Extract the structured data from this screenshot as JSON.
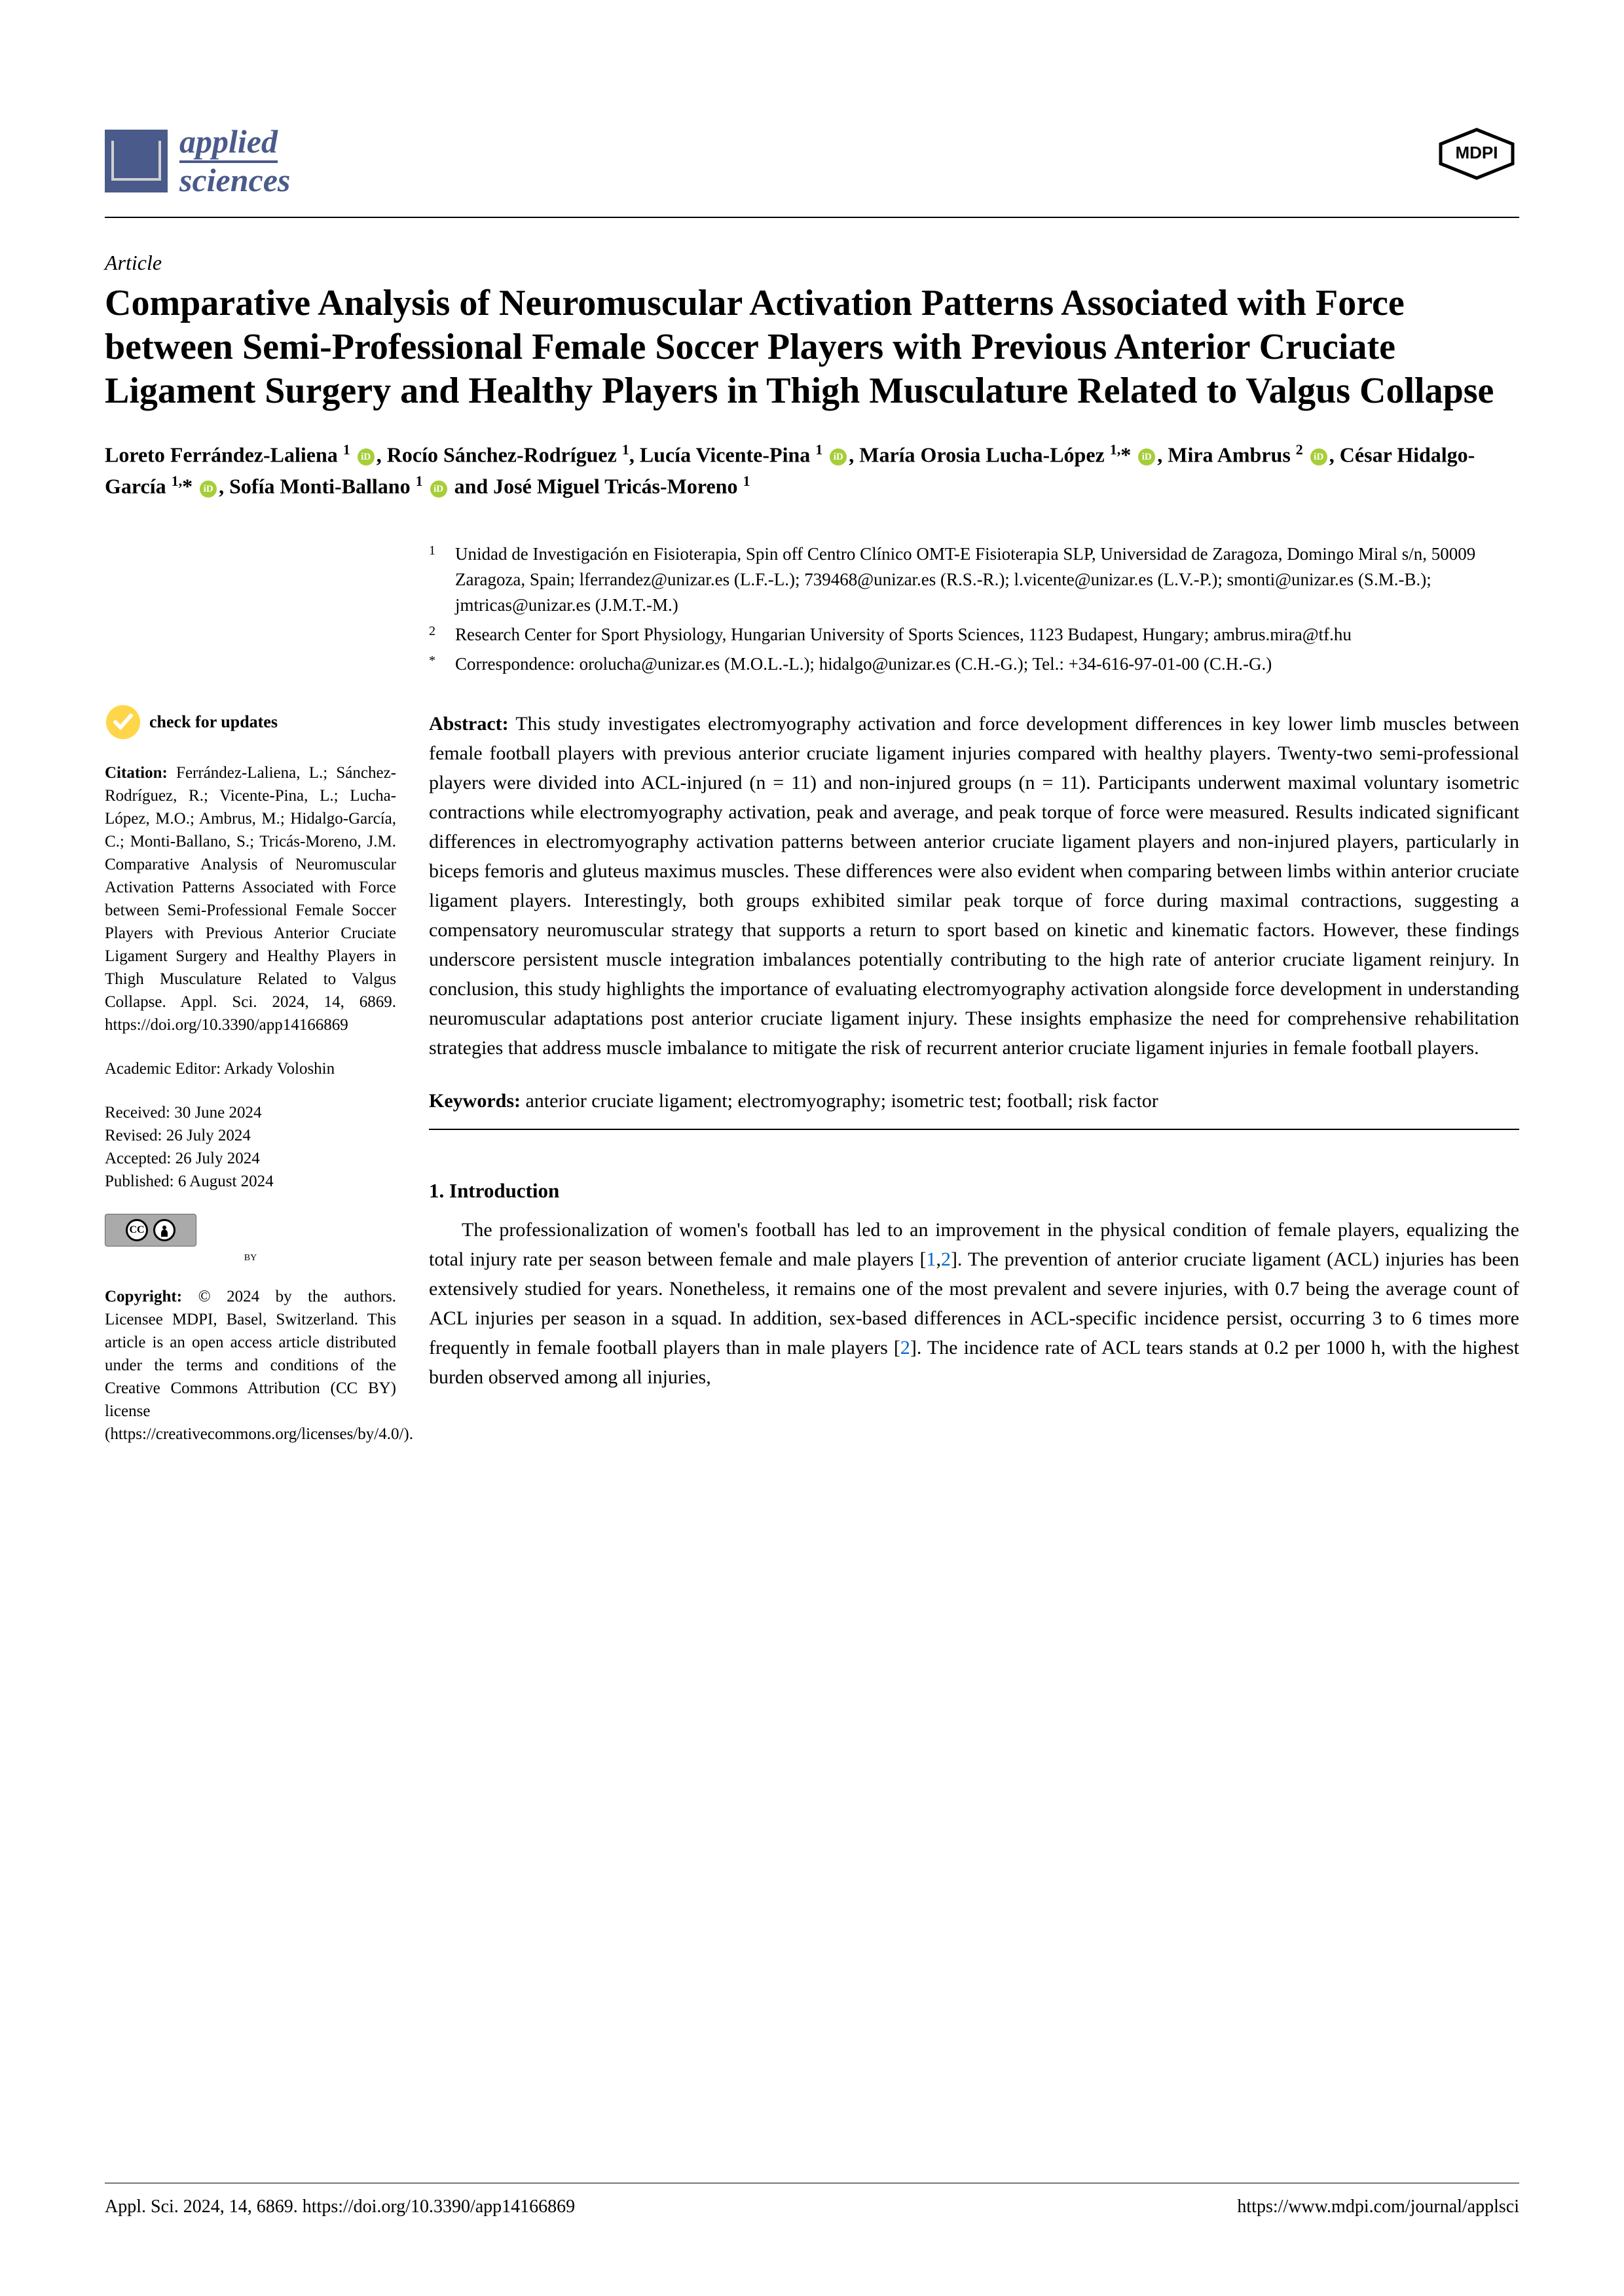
{
  "journal": {
    "name_line1": "applied",
    "name_line2": "sciences",
    "publisher": "MDPI"
  },
  "article_type": "Article",
  "title": "Comparative Analysis of Neuromuscular Activation Patterns Associated with Force between Semi-Professional Female Soccer Players with Previous Anterior Cruciate Ligament Surgery and Healthy Players in Thigh Musculature Related to Valgus Collapse",
  "authors_html": "Loreto Ferrández-Laliena <sup>1</sup> <span class='orcid'></span>, Rocío Sánchez-Rodríguez <sup>1</sup>, Lucía Vicente-Pina <sup>1</sup> <span class='orcid'></span>, María Orosia Lucha-López <sup>1,</sup>* <span class='orcid'></span>, Mira Ambrus <sup>2</sup> <span class='orcid'></span>, César Hidalgo-García <sup>1,</sup>* <span class='orcid'></span>, Sofía Monti-Ballano <sup>1</sup> <span class='orcid'></span> and José Miguel Tricás-Moreno <sup>1</sup>",
  "affiliations": [
    {
      "num": "1",
      "text": "Unidad de Investigación en Fisioterapia, Spin off Centro Clínico OMT-E Fisioterapia SLP, Universidad de Zaragoza, Domingo Miral s/n, 50009 Zaragoza, Spain; lferrandez@unizar.es (L.F.-L.); 739468@unizar.es (R.S.-R.); l.vicente@unizar.es (L.V.-P.); smonti@unizar.es (S.M.-B.); jmtricas@unizar.es (J.M.T.-M.)"
    },
    {
      "num": "2",
      "text": "Research Center for Sport Physiology, Hungarian University of Sports Sciences, 1123 Budapest, Hungary; ambrus.mira@tf.hu"
    },
    {
      "num": "*",
      "text": "Correspondence: orolucha@unizar.es (M.O.L.-L.); hidalgo@unizar.es (C.H.-G.); Tel.: +34-616-97-01-00 (C.H.-G.)"
    }
  ],
  "abstract_label": "Abstract:",
  "abstract": "This study investigates electromyography activation and force development differences in key lower limb muscles between female football players with previous anterior cruciate ligament injuries compared with healthy players. Twenty-two semi-professional players were divided into ACL-injured (n = 11) and non-injured groups (n = 11). Participants underwent maximal voluntary isometric contractions while electromyography activation, peak and average, and peak torque of force were measured. Results indicated significant differences in electromyography activation patterns between anterior cruciate ligament players and non-injured players, particularly in biceps femoris and gluteus maximus muscles. These differences were also evident when comparing between limbs within anterior cruciate ligament players. Interestingly, both groups exhibited similar peak torque of force during maximal contractions, suggesting a compensatory neuromuscular strategy that supports a return to sport based on kinetic and kinematic factors. However, these findings underscore persistent muscle integration imbalances potentially contributing to the high rate of anterior cruciate ligament reinjury. In conclusion, this study highlights the importance of evaluating electromyography activation alongside force development in understanding neuromuscular adaptations post anterior cruciate ligament injury. These insights emphasize the need for comprehensive rehabilitation strategies that address muscle imbalance to mitigate the risk of recurrent anterior cruciate ligament injuries in female football players.",
  "keywords_label": "Keywords:",
  "keywords": "anterior cruciate ligament; electromyography; isometric test; football; risk factor",
  "section1_head": "1. Introduction",
  "intro_html": "The professionalization of women's football has led to an improvement in the physical condition of female players, equalizing the total injury rate per season between female and male players [<span class='ref-link'>1</span>,<span class='ref-link'>2</span>]. The prevention of anterior cruciate ligament (ACL) injuries has been extensively studied for years. Nonetheless, it remains one of the most prevalent and severe injuries, with 0.7 being the average count of ACL injuries per season in a squad. In addition, sex-based differences in ACL-specific incidence persist, occurring 3 to 6 times more frequently in female football players than in male players [<span class='ref-link'>2</span>]. The incidence rate of ACL tears stands at 0.2 per 1000 h, with the highest burden observed among all injuries,",
  "sidebar": {
    "check_updates": "check for updates",
    "citation_label": "Citation:",
    "citation": "Ferrández-Laliena, L.; Sánchez-Rodríguez, R.; Vicente-Pina, L.; Lucha-López, M.O.; Ambrus, M.; Hidalgo-García, C.; Monti-Ballano, S.; Tricás-Moreno, J.M. Comparative Analysis of Neuromuscular Activation Patterns Associated with Force between Semi-Professional Female Soccer Players with Previous Anterior Cruciate Ligament Surgery and Healthy Players in Thigh Musculature Related to Valgus Collapse. Appl. Sci. 2024, 14, 6869. https://doi.org/10.3390/app14166869",
    "editor_label": "Academic Editor:",
    "editor": "Arkady Voloshin",
    "received": "Received: 30 June 2024",
    "revised": "Revised: 26 July 2024",
    "accepted": "Accepted: 26 July 2024",
    "published": "Published: 6 August 2024",
    "cc_by": "BY",
    "copyright_label": "Copyright:",
    "copyright": "© 2024 by the authors. Licensee MDPI, Basel, Switzerland. This article is an open access article distributed under the terms and conditions of the Creative Commons Attribution (CC BY) license (https://creativecommons.org/licenses/by/4.0/)."
  },
  "footer": {
    "left": "Appl. Sci. 2024, 14, 6869. https://doi.org/10.3390/app14166869",
    "right": "https://www.mdpi.com/journal/applsci"
  },
  "colors": {
    "brand": "#4a5a8a",
    "orcid": "#a6ce39",
    "link": "#0066cc",
    "text": "#000000",
    "bg": "#ffffff"
  }
}
